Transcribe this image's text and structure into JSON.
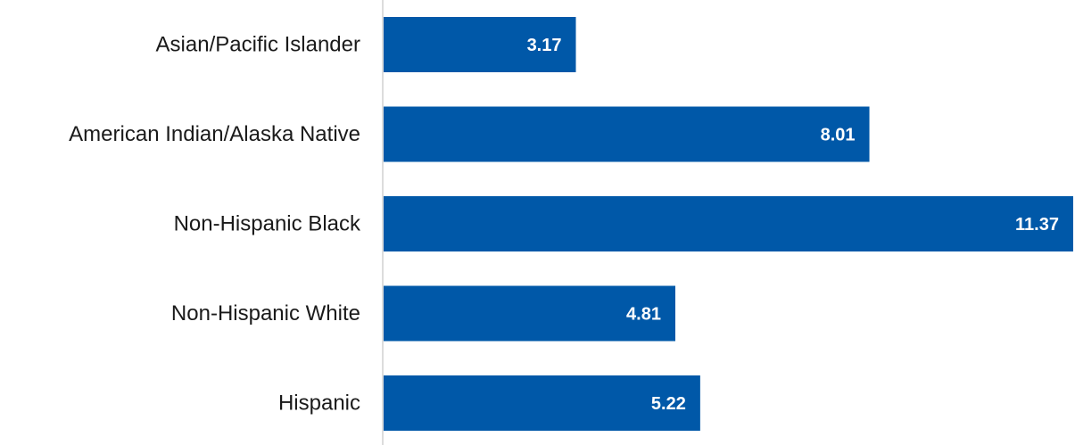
{
  "chart_data": {
    "type": "bar",
    "orientation": "horizontal",
    "categories": [
      "Asian/Pacific Islander",
      "American Indian/Alaska Native",
      "Non-Hispanic Black",
      "Non-Hispanic White",
      "Hispanic"
    ],
    "values": [
      3.17,
      8.01,
      11.37,
      4.81,
      5.22
    ],
    "value_labels": [
      "3.17",
      "8.01",
      "11.37",
      "4.81",
      "5.22"
    ],
    "xlim": [
      0,
      11.4
    ],
    "grid": false,
    "bar_color": "#0058a8",
    "axis_color": "#d0d0d0"
  }
}
